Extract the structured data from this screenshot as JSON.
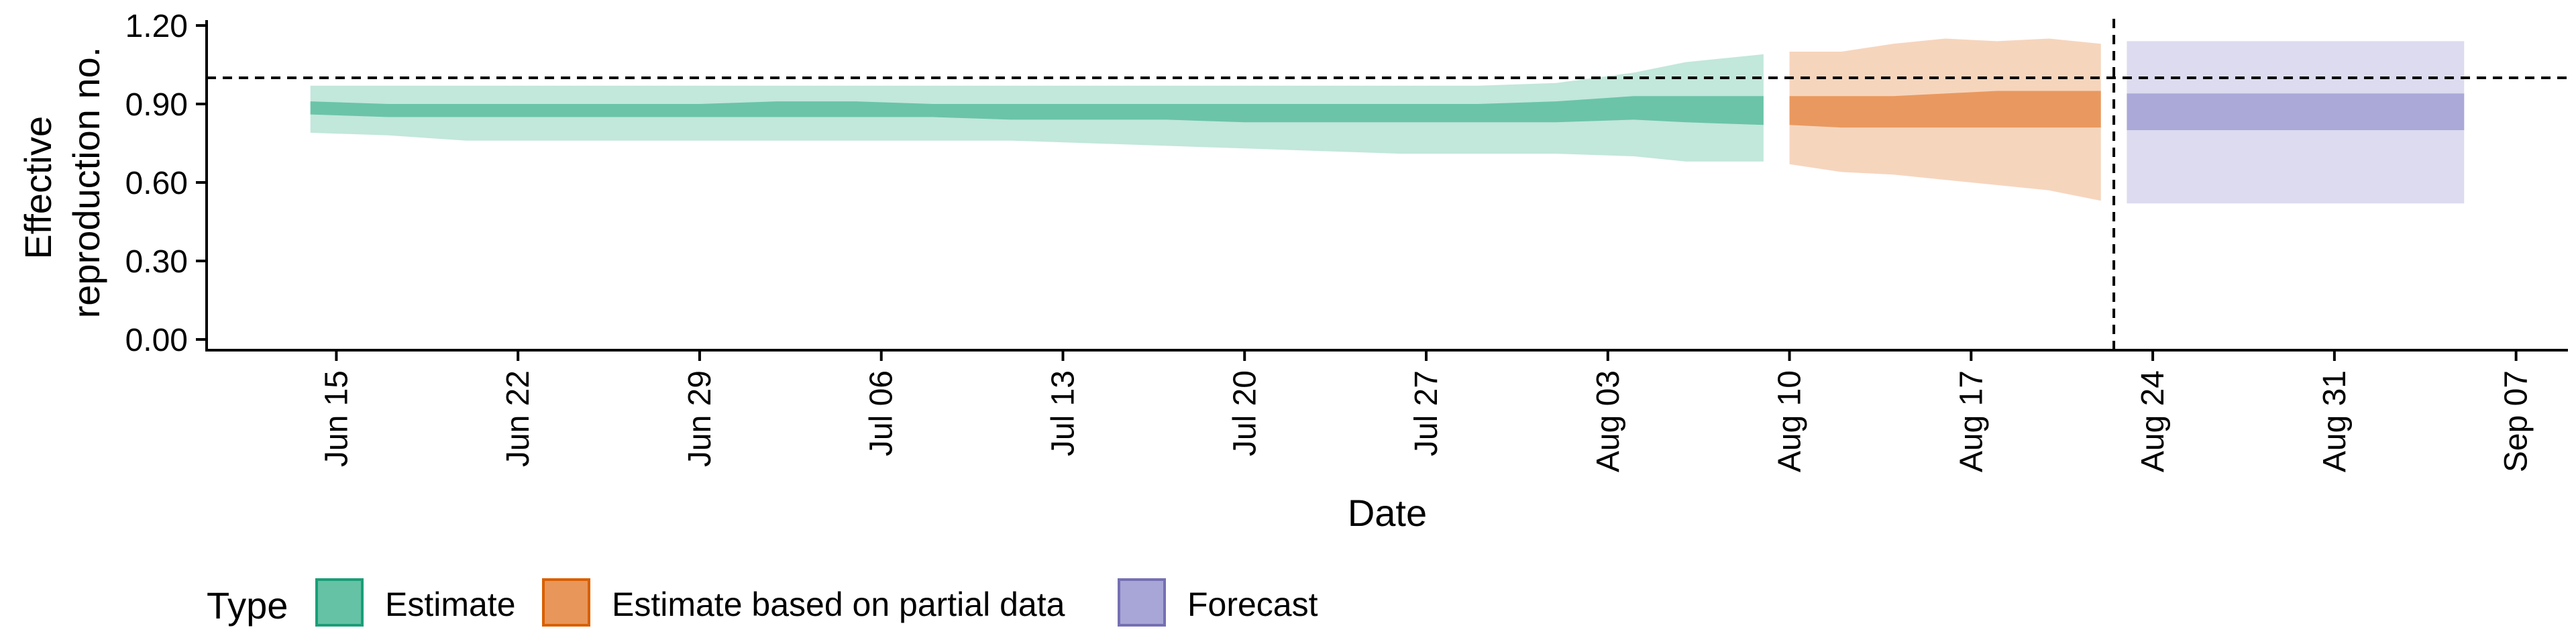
{
  "chart_data": {
    "type": "area",
    "xlabel": "Date",
    "ylabel_lines": [
      "Effective",
      "reproduction no."
    ],
    "y_ticks": [
      "0.00",
      "0.30",
      "0.60",
      "0.90",
      "1.20"
    ],
    "ylim": [
      0,
      1.2
    ],
    "x_ticks": [
      "Jun 15",
      "Jun 22",
      "Jun 29",
      "Jul 06",
      "Jul 13",
      "Jul 20",
      "Jul 27",
      "Aug 03",
      "Aug 10",
      "Aug 17",
      "Aug 24",
      "Aug 31",
      "Sep 07"
    ],
    "xlim": [
      "2020-06-10",
      "2020-09-09"
    ],
    "reference_line": {
      "y": 1.0,
      "style": "dashed"
    },
    "forecast_start_line": {
      "x": "2020-08-22",
      "style": "dashed"
    },
    "legend": {
      "title": "Type",
      "position": "bottom-left",
      "items": [
        {
          "label": "Estimate",
          "fill": "#66c2a5",
          "border": "#1b9e77"
        },
        {
          "label": "Estimate based on partial data",
          "fill": "#e8965a",
          "border": "#d95f02"
        },
        {
          "label": "Forecast",
          "fill": "#a8a6d6",
          "border": "#7570b3"
        }
      ]
    },
    "series": [
      {
        "name": "Estimate",
        "color": "#66c2a5",
        "x": [
          "2020-06-14",
          "2020-06-17",
          "2020-06-20",
          "2020-06-23",
          "2020-06-26",
          "2020-06-29",
          "2020-07-02",
          "2020-07-05",
          "2020-07-08",
          "2020-07-11",
          "2020-07-14",
          "2020-07-17",
          "2020-07-20",
          "2020-07-23",
          "2020-07-26",
          "2020-07-29",
          "2020-08-01",
          "2020-08-04",
          "2020-08-06",
          "2020-08-09"
        ],
        "outer_upper": [
          0.97,
          0.97,
          0.97,
          0.97,
          0.97,
          0.97,
          0.97,
          0.97,
          0.97,
          0.97,
          0.97,
          0.97,
          0.97,
          0.97,
          0.97,
          0.97,
          0.98,
          1.02,
          1.06,
          1.09
        ],
        "outer_lower": [
          0.79,
          0.78,
          0.76,
          0.76,
          0.76,
          0.76,
          0.76,
          0.76,
          0.76,
          0.76,
          0.75,
          0.74,
          0.73,
          0.72,
          0.71,
          0.71,
          0.71,
          0.7,
          0.68,
          0.68
        ],
        "inner_upper": [
          0.91,
          0.9,
          0.9,
          0.9,
          0.9,
          0.9,
          0.91,
          0.91,
          0.9,
          0.9,
          0.9,
          0.9,
          0.9,
          0.9,
          0.9,
          0.9,
          0.91,
          0.93,
          0.93,
          0.93
        ],
        "inner_lower": [
          0.86,
          0.85,
          0.85,
          0.85,
          0.85,
          0.85,
          0.85,
          0.85,
          0.85,
          0.84,
          0.84,
          0.84,
          0.83,
          0.83,
          0.83,
          0.83,
          0.83,
          0.84,
          0.83,
          0.82
        ]
      },
      {
        "name": "Estimate based on partial data",
        "color": "#e8965a",
        "x": [
          "2020-08-10",
          "2020-08-12",
          "2020-08-14",
          "2020-08-16",
          "2020-08-18",
          "2020-08-20",
          "2020-08-22"
        ],
        "outer_upper": [
          1.1,
          1.1,
          1.13,
          1.15,
          1.14,
          1.15,
          1.13
        ],
        "outer_lower": [
          0.67,
          0.64,
          0.63,
          0.61,
          0.59,
          0.57,
          0.53
        ],
        "inner_upper": [
          0.93,
          0.93,
          0.93,
          0.94,
          0.95,
          0.95,
          0.95
        ],
        "inner_lower": [
          0.82,
          0.81,
          0.81,
          0.81,
          0.81,
          0.81,
          0.81
        ]
      },
      {
        "name": "Forecast",
        "color": "#a8a6d6",
        "x": [
          "2020-08-23",
          "2020-09-05"
        ],
        "outer_upper": [
          1.14,
          1.14
        ],
        "outer_lower": [
          0.52,
          0.52
        ],
        "inner_upper": [
          0.94,
          0.94
        ],
        "inner_lower": [
          0.8,
          0.8
        ]
      }
    ]
  }
}
